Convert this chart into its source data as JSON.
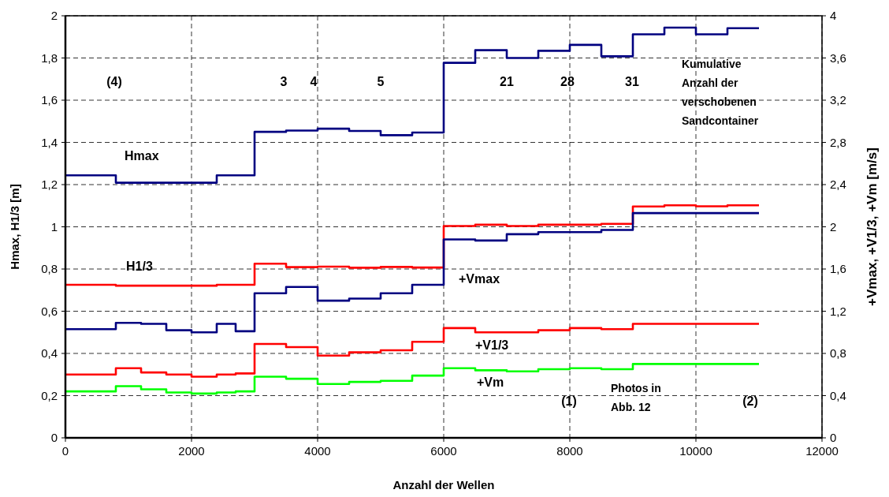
{
  "chart_data": {
    "type": "step",
    "xlabel": "Anzahl der Wellen",
    "ylabel": "Hmax, H1/3  [m]",
    "y2label": "+Vmax, +V1/3, +Vm  [m/s]",
    "x": [
      0,
      800,
      1200,
      1600,
      2000,
      2400,
      2700,
      3000,
      3500,
      4000,
      4500,
      5000,
      5500,
      6000,
      6500,
      7000,
      7500,
      8000,
      8500,
      9000,
      9500,
      10000,
      10500,
      11000
    ],
    "series": [
      {
        "name": "Hmax",
        "color": "#000080",
        "values": [
          1.244,
          1.209,
          1.209,
          1.209,
          1.209,
          1.244,
          1.244,
          1.45,
          1.456,
          1.465,
          1.454,
          1.434,
          1.447,
          1.777,
          1.837,
          1.8,
          1.834,
          1.862,
          1.808,
          1.912,
          1.944,
          1.912,
          1.941,
          1.941
        ]
      },
      {
        "name": "H1/3",
        "color": "#ff0000",
        "values": [
          0.725,
          0.721,
          0.721,
          0.721,
          0.721,
          0.725,
          0.725,
          0.825,
          0.809,
          0.811,
          0.806,
          0.81,
          0.807,
          1.004,
          1.01,
          1.004,
          1.01,
          1.01,
          1.014,
          1.096,
          1.102,
          1.097,
          1.102,
          1.102
        ]
      },
      {
        "name": "+Vmax",
        "color": "#000080",
        "axis": "y2",
        "values": [
          1.03,
          1.09,
          1.08,
          1.02,
          1.0,
          1.08,
          1.01,
          1.37,
          1.43,
          1.3,
          1.32,
          1.37,
          1.45,
          1.88,
          1.87,
          1.93,
          1.95,
          1.95,
          1.97,
          2.13,
          2.13,
          2.13,
          2.13,
          2.13
        ]
      },
      {
        "name": "+V1/3",
        "color": "#ff0000",
        "axis": "y2",
        "values": [
          0.6,
          0.66,
          0.62,
          0.6,
          0.58,
          0.6,
          0.61,
          0.89,
          0.86,
          0.78,
          0.81,
          0.83,
          0.91,
          1.04,
          1.0,
          1.0,
          1.02,
          1.04,
          1.03,
          1.08,
          1.08,
          1.08,
          1.08,
          1.08
        ]
      },
      {
        "name": "+Vm",
        "color": "#00ff00",
        "axis": "y2",
        "values": [
          0.44,
          0.49,
          0.46,
          0.43,
          0.42,
          0.43,
          0.44,
          0.58,
          0.56,
          0.51,
          0.53,
          0.54,
          0.59,
          0.66,
          0.64,
          0.63,
          0.65,
          0.66,
          0.65,
          0.7,
          0.7,
          0.7,
          0.7,
          0.7
        ]
      }
    ],
    "xlim": [
      0,
      12000
    ],
    "xticks": [
      0,
      2000,
      4000,
      6000,
      8000,
      10000,
      12000
    ],
    "ylim": [
      0,
      2
    ],
    "yticks": [
      0,
      {
        "value": 0.2,
        "label": "0,2"
      },
      {
        "value": 0.4,
        "label": "0,4"
      },
      {
        "value": 0.6,
        "label": "0,6"
      },
      {
        "value": 0.8,
        "label": "0,8"
      },
      1,
      {
        "value": 1.2,
        "label": "1,2"
      },
      {
        "value": 1.4,
        "label": "1,4"
      },
      {
        "value": 1.6,
        "label": "1,6"
      },
      {
        "value": 1.8,
        "label": "1,8"
      },
      2
    ],
    "y2lim": [
      0,
      4
    ],
    "y2ticks": [
      0,
      {
        "value": 0.4,
        "label": "0,4"
      },
      {
        "value": 0.8,
        "label": "0,8"
      },
      {
        "value": 1.2,
        "label": "1,2"
      },
      {
        "value": 1.6,
        "label": "1,6"
      },
      2,
      {
        "value": 2.4,
        "label": "2,4"
      },
      {
        "value": 2.8,
        "label": "2,8"
      },
      {
        "value": 3.2,
        "label": "3,2"
      },
      {
        "value": 3.6,
        "label": "3,6"
      },
      4
    ],
    "grid": true,
    "annotations": [
      "(4)",
      "3",
      "4",
      "5",
      "21",
      "28",
      "31",
      "Kumulative Anzahl der verschobenen Sandcontainer",
      "(1)",
      "Photos in Abb. 12",
      "(2)"
    ]
  }
}
